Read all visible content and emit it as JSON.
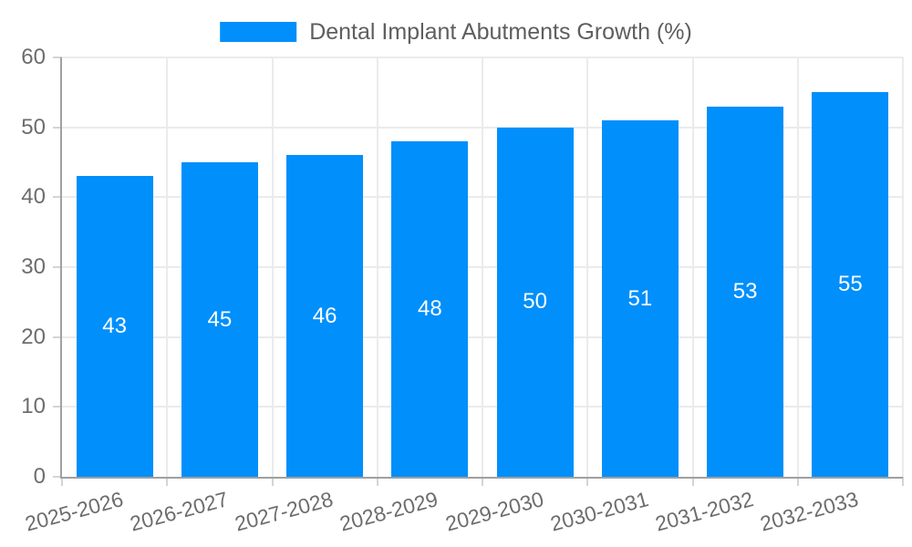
{
  "chart_data": {
    "type": "bar",
    "title": "Dental Implant Abutments Growth (%)",
    "legend": {
      "label": "Dental Implant Abutments Growth (%)",
      "position": "top"
    },
    "categories": [
      "2025-2026",
      "2026-2027",
      "2027-2028",
      "2028-2029",
      "2029-2030",
      "2030-2031",
      "2031-2032",
      "2032-2033"
    ],
    "values": [
      43,
      45,
      46,
      48,
      50,
      51,
      53,
      55
    ],
    "xlabel": "",
    "ylabel": "",
    "ylim": [
      0,
      60
    ],
    "yticks": [
      0,
      10,
      20,
      30,
      40,
      50,
      60
    ],
    "grid": true,
    "colors": {
      "bar": "#008FFB",
      "value_label": "#FFFFFF",
      "grid_line": "#EBEBEB",
      "tick_mark": "#D4D4D4",
      "axis_line": "#A0A0A0",
      "tick_label": "#6D6D6D",
      "legend_text": "#5E5E5E",
      "background": "#FFFFFF"
    }
  }
}
